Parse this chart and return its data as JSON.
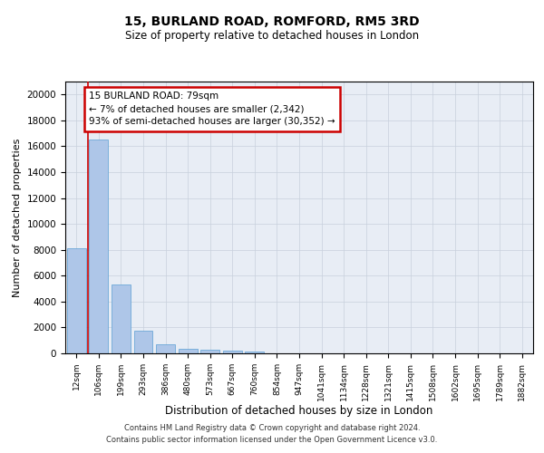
{
  "title1": "15, BURLAND ROAD, ROMFORD, RM5 3RD",
  "title2": "Size of property relative to detached houses in London",
  "xlabel": "Distribution of detached houses by size in London",
  "ylabel": "Number of detached properties",
  "categories": [
    "12sqm",
    "106sqm",
    "199sqm",
    "293sqm",
    "386sqm",
    "480sqm",
    "573sqm",
    "667sqm",
    "760sqm",
    "854sqm",
    "947sqm",
    "1041sqm",
    "1134sqm",
    "1228sqm",
    "1321sqm",
    "1415sqm",
    "1508sqm",
    "1602sqm",
    "1695sqm",
    "1789sqm",
    "1882sqm"
  ],
  "bar_heights": [
    8100,
    16500,
    5300,
    1750,
    700,
    380,
    280,
    200,
    150,
    0,
    0,
    0,
    0,
    0,
    0,
    0,
    0,
    0,
    0,
    0,
    0
  ],
  "bar_color": "#aec6e8",
  "bar_edge_color": "#5a9fd4",
  "annotation_text": "15 BURLAND ROAD: 79sqm\n← 7% of detached houses are smaller (2,342)\n93% of semi-detached houses are larger (30,352) →",
  "annotation_box_color": "#ffffff",
  "annotation_box_edge": "#cc0000",
  "property_line_color": "#cc0000",
  "ylim": [
    0,
    21000
  ],
  "yticks": [
    0,
    2000,
    4000,
    6000,
    8000,
    10000,
    12000,
    14000,
    16000,
    18000,
    20000
  ],
  "grid_color": "#c8d0dc",
  "bg_color": "#e8edf5",
  "footer1": "Contains HM Land Registry data © Crown copyright and database right 2024.",
  "footer2": "Contains public sector information licensed under the Open Government Licence v3.0."
}
